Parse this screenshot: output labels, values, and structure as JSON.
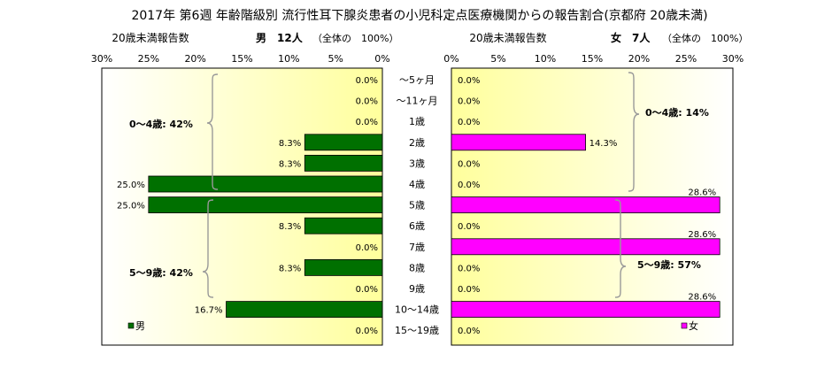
{
  "header": {
    "title": "2017年 第6週 年齢階級別 流行性耳下腺炎患者の小児科定点医療機関からの報告割合(京都府 20歳未満)",
    "left_subtitle": "20歳未満報告数",
    "right_subtitle": "20歳未満報告数",
    "male_total_label": "男　12人",
    "male_total_note": "（全体の　100%）",
    "female_total_label": "女　7人",
    "female_total_note": "（全体の　100%）"
  },
  "chart_data": {
    "type": "bar",
    "orientation": "horizontal-butterfly",
    "categories": [
      "〜5ヶ月",
      "〜11ヶ月",
      "1歳",
      "2歳",
      "3歳",
      "4歳",
      "5歳",
      "6歳",
      "7歳",
      "8歳",
      "9歳",
      "10〜14歳",
      "15〜19歳"
    ],
    "xlim": [
      0,
      30
    ],
    "x_ticks_left": [
      "30%",
      "25%",
      "20%",
      "15%",
      "10%",
      "5%",
      "0%"
    ],
    "x_ticks_right": [
      "0%",
      "5%",
      "10%",
      "15%",
      "20%",
      "25%",
      "30%"
    ],
    "series": [
      {
        "name": "男",
        "side": "left",
        "color": "#007000",
        "values": [
          0.0,
          0.0,
          0.0,
          8.3,
          8.3,
          25.0,
          25.0,
          8.3,
          0.0,
          8.3,
          0.0,
          16.7,
          0.0
        ],
        "labels": [
          "0.0%",
          "0.0%",
          "0.0%",
          "8.3%",
          "8.3%",
          "25.0%",
          "25.0%",
          "8.3%",
          "0.0%",
          "8.3%",
          "0.0%",
          "16.7%",
          "0.0%"
        ]
      },
      {
        "name": "女",
        "side": "right",
        "color": "#ff00ff",
        "values": [
          0.0,
          0.0,
          0.0,
          14.3,
          0.0,
          0.0,
          28.6,
          0.0,
          28.6,
          0.0,
          0.0,
          28.6,
          0.0
        ],
        "labels": [
          "0.0%",
          "0.0%",
          "0.0%",
          "14.3%",
          "0.0%",
          "0.0%",
          "28.6%",
          "0.0%",
          "28.6%",
          "0.0%",
          "0.0%",
          "28.6%",
          "0.0%"
        ]
      }
    ],
    "annotations": {
      "male_0_4": "0〜4歳: 42%",
      "male_5_9": "5〜9歳: 42%",
      "female_0_4": "0〜4歳: 14%",
      "female_5_9": "5〜9歳: 57%"
    },
    "legend": {
      "male": "男",
      "female": "女",
      "placement": "bottom-left / bottom-right"
    }
  }
}
